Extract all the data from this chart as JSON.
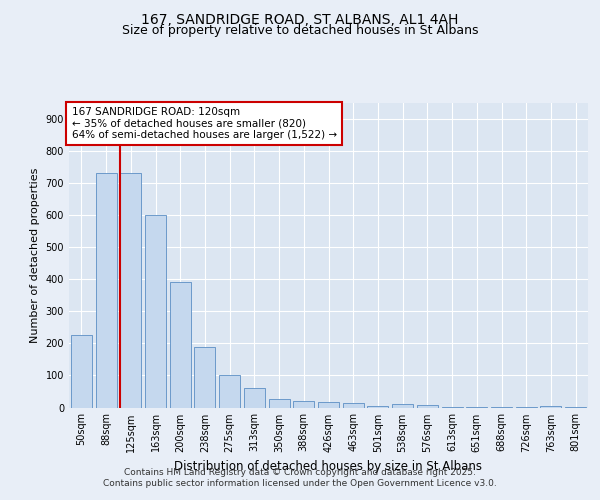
{
  "title": "167, SANDRIDGE ROAD, ST ALBANS, AL1 4AH",
  "subtitle": "Size of property relative to detached houses in St Albans",
  "xlabel": "Distribution of detached houses by size in St Albans",
  "ylabel": "Number of detached properties",
  "categories": [
    "50sqm",
    "88sqm",
    "125sqm",
    "163sqm",
    "200sqm",
    "238sqm",
    "275sqm",
    "313sqm",
    "350sqm",
    "388sqm",
    "426sqm",
    "463sqm",
    "501sqm",
    "538sqm",
    "576sqm",
    "613sqm",
    "651sqm",
    "688sqm",
    "726sqm",
    "763sqm",
    "801sqm"
  ],
  "values": [
    225,
    730,
    730,
    600,
    390,
    190,
    100,
    60,
    25,
    20,
    18,
    15,
    5,
    10,
    8,
    3,
    2,
    1,
    1,
    5,
    1
  ],
  "bar_color": "#c5d8ee",
  "bar_edge_color": "#5b8ec4",
  "highlight_bar_index": 2,
  "highlight_line_color": "#cc0000",
  "ylim": [
    0,
    950
  ],
  "yticks": [
    0,
    100,
    200,
    300,
    400,
    500,
    600,
    700,
    800,
    900
  ],
  "annotation_text": "167 SANDRIDGE ROAD: 120sqm\n← 35% of detached houses are smaller (820)\n64% of semi-detached houses are larger (1,522) →",
  "annotation_box_color": "#ffffff",
  "annotation_box_edge_color": "#cc0000",
  "footer_text": "Contains HM Land Registry data © Crown copyright and database right 2025.\nContains public sector information licensed under the Open Government Licence v3.0.",
  "background_color": "#e8eef7",
  "plot_bg_color": "#dce6f2",
  "grid_color": "#ffffff",
  "title_fontsize": 10,
  "subtitle_fontsize": 9,
  "xlabel_fontsize": 8.5,
  "ylabel_fontsize": 8,
  "tick_fontsize": 7,
  "annotation_fontsize": 7.5,
  "footer_fontsize": 6.5
}
